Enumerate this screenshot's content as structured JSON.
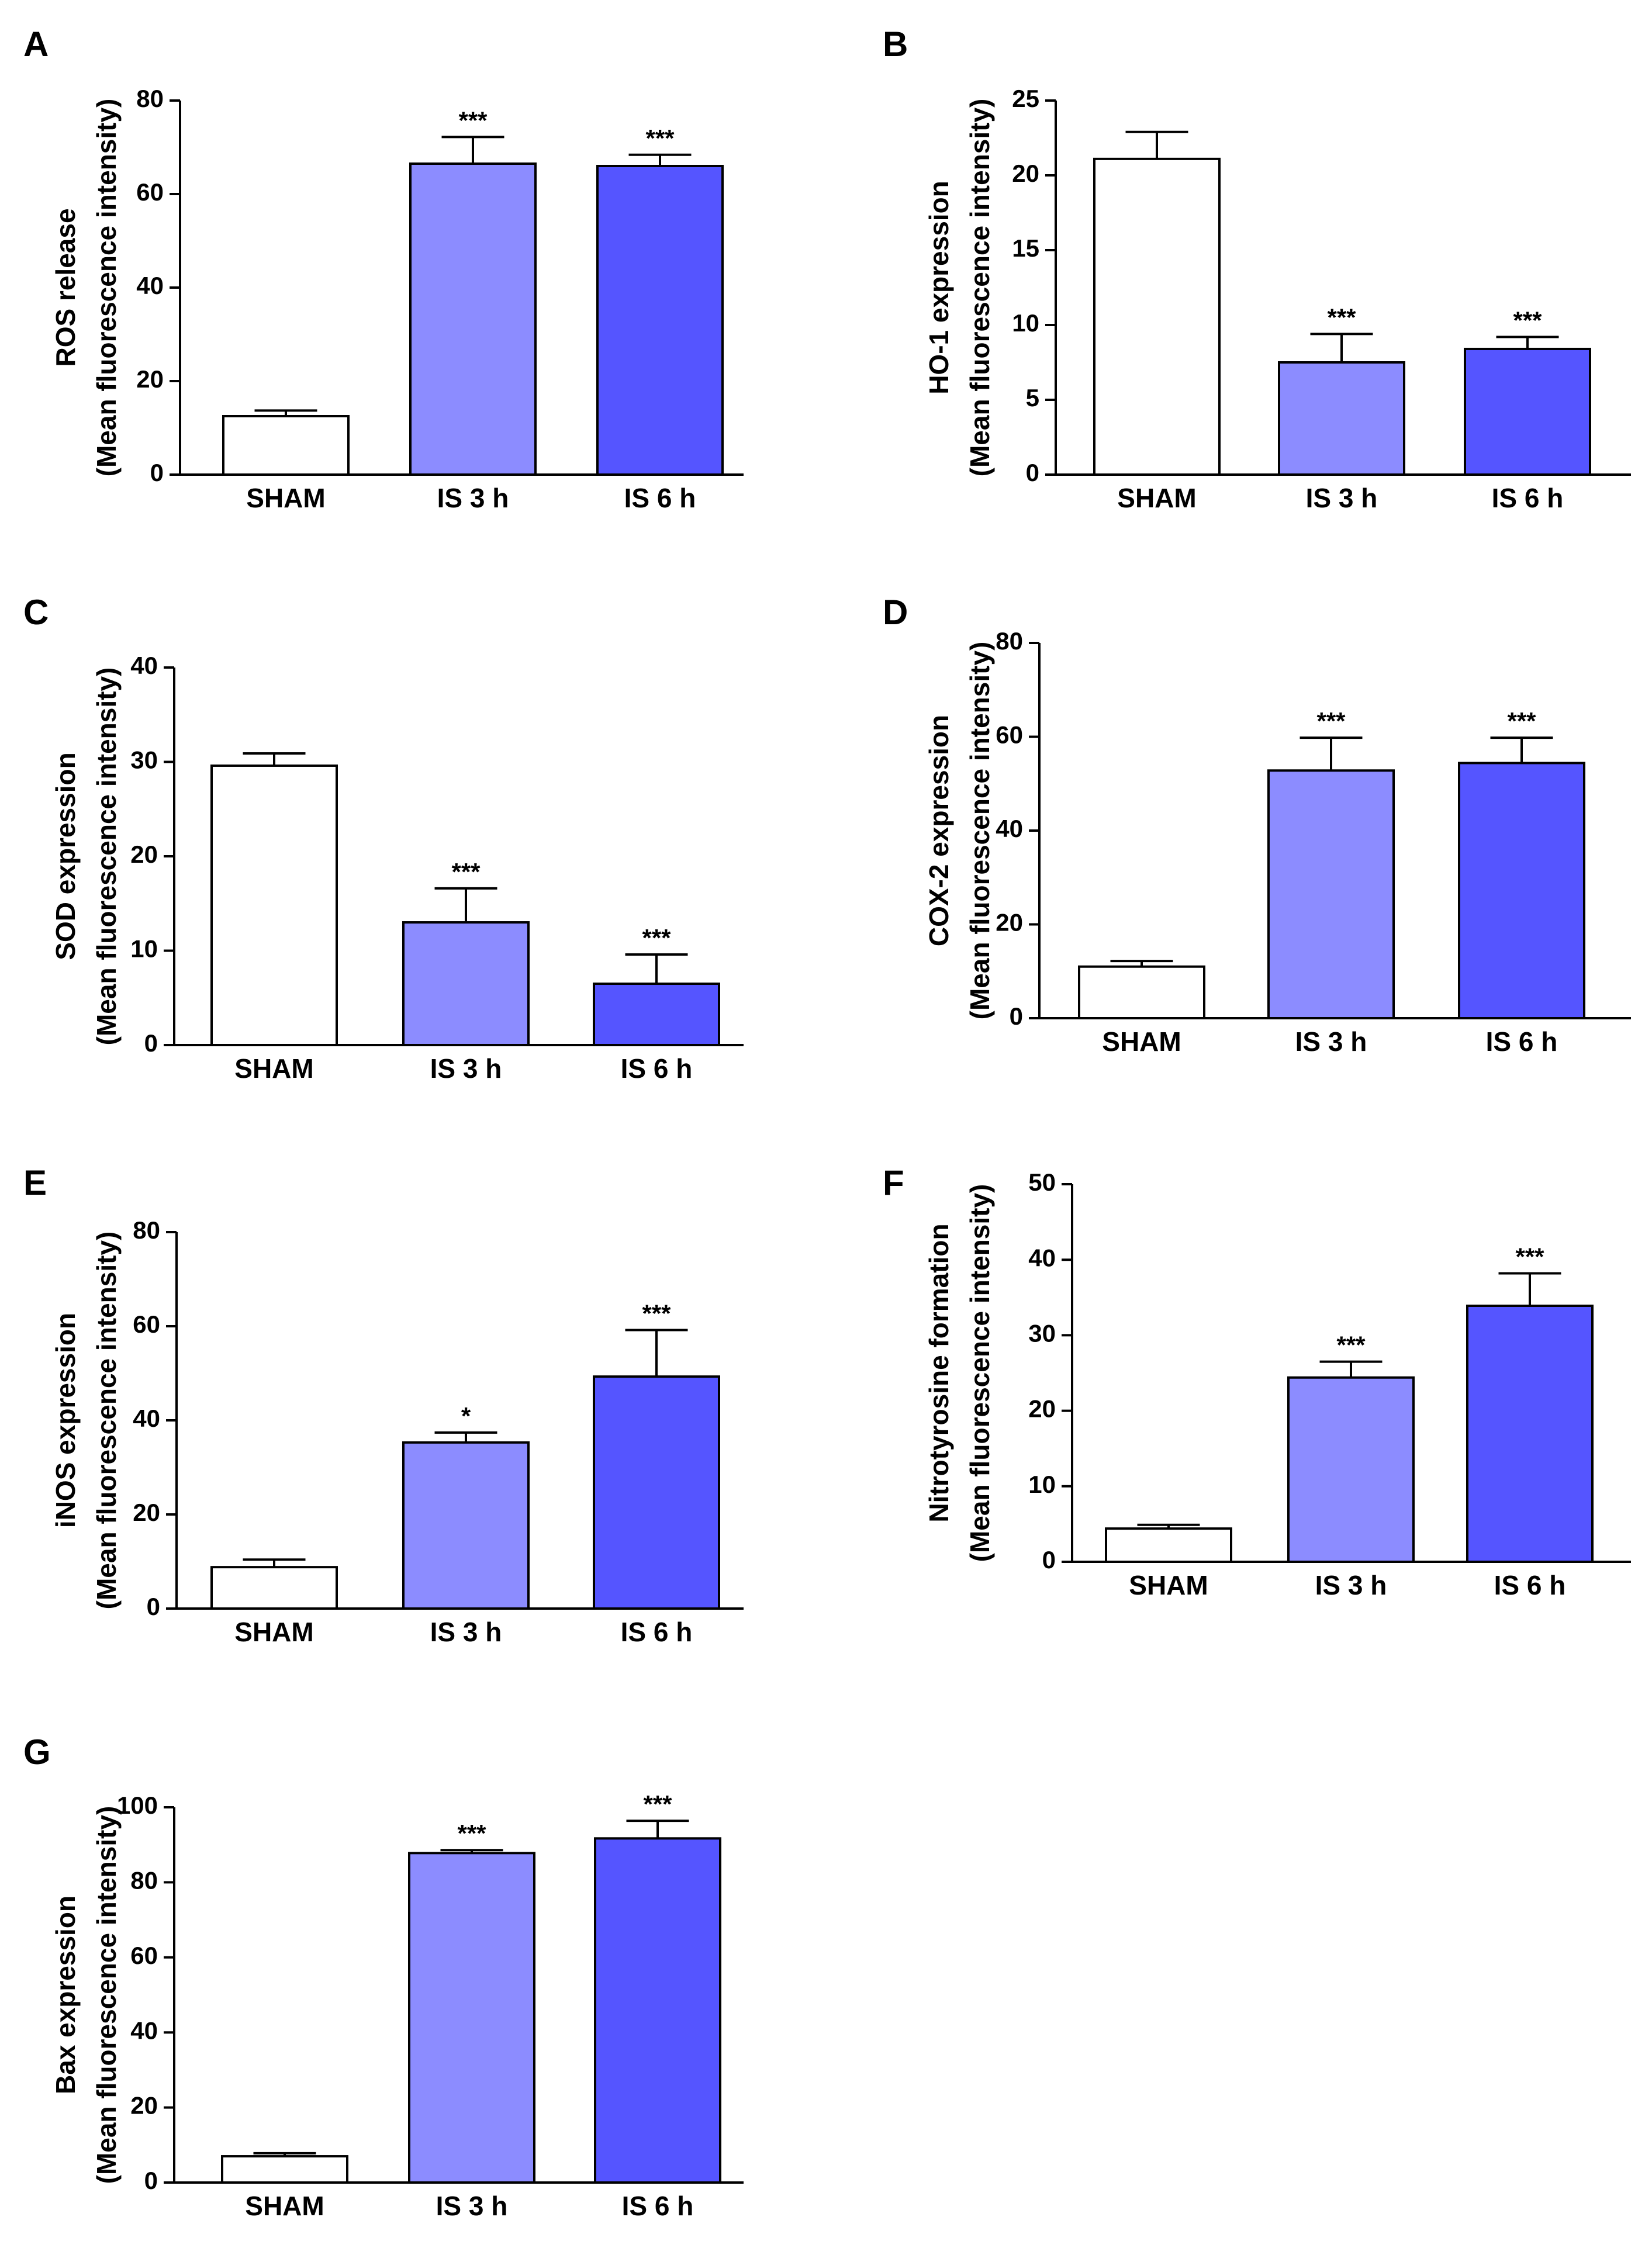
{
  "colors": {
    "SHAM": "#ffffff",
    "IS 3 h": "#8c8cff",
    "IS 6 h": "#5555ff",
    "stroke": "#000000"
  },
  "chart_data": [
    {
      "panel": "A",
      "type": "bar",
      "categories": [
        "SHAM",
        "IS 3 h",
        "IS 6 h"
      ],
      "values": [
        12.5,
        66.5,
        66.0
      ],
      "errors": [
        1.2,
        5.7,
        2.4
      ],
      "significance": [
        "",
        "***",
        "***"
      ],
      "ylabel_lines": [
        "ROS release",
        "(Mean fluorescence intensity)"
      ],
      "ylim": [
        0,
        80
      ],
      "yticks": [
        0,
        20,
        40,
        60,
        80
      ]
    },
    {
      "panel": "B",
      "type": "bar",
      "categories": [
        "SHAM",
        "IS 3 h",
        "IS 6 h"
      ],
      "values": [
        21.1,
        7.5,
        8.4
      ],
      "errors": [
        1.8,
        1.9,
        0.8
      ],
      "significance": [
        "",
        "***",
        "***"
      ],
      "ylabel_lines": [
        "HO-1 expression",
        "(Mean fluorescence intensity)"
      ],
      "ylim": [
        0,
        25
      ],
      "yticks": [
        0,
        5,
        10,
        15,
        20,
        25
      ]
    },
    {
      "panel": "C",
      "type": "bar",
      "categories": [
        "SHAM",
        "IS 3 h",
        "IS 6 h"
      ],
      "values": [
        29.6,
        13.0,
        6.5
      ],
      "errors": [
        1.3,
        3.6,
        3.1
      ],
      "significance": [
        "",
        "***",
        "***"
      ],
      "ylabel_lines": [
        "SOD expression",
        "(Mean fluorescence intensity)"
      ],
      "ylim": [
        0,
        40
      ],
      "yticks": [
        0,
        10,
        20,
        30,
        40
      ]
    },
    {
      "panel": "D",
      "type": "bar",
      "categories": [
        "SHAM",
        "IS 3 h",
        "IS 6 h"
      ],
      "values": [
        11.0,
        52.8,
        54.4
      ],
      "errors": [
        1.2,
        7.0,
        5.4
      ],
      "significance": [
        "",
        "***",
        "***"
      ],
      "ylabel_lines": [
        "COX-2 expression",
        "(Mean fluorescence intensity)"
      ],
      "ylim": [
        0,
        80
      ],
      "yticks": [
        0,
        20,
        40,
        60,
        80
      ]
    },
    {
      "panel": "E",
      "type": "bar",
      "categories": [
        "SHAM",
        "IS 3 h",
        "IS 6 h"
      ],
      "values": [
        8.8,
        35.3,
        49.3
      ],
      "errors": [
        1.6,
        2.1,
        9.9
      ],
      "significance": [
        "",
        "*",
        "***"
      ],
      "ylabel_lines": [
        "iNOS expression",
        "(Mean fluorescence intensity)"
      ],
      "ylim": [
        0,
        80
      ],
      "yticks": [
        0,
        20,
        40,
        60,
        80
      ]
    },
    {
      "panel": "F",
      "type": "bar",
      "categories": [
        "SHAM",
        "IS 3 h",
        "IS 6 h"
      ],
      "values": [
        4.4,
        24.4,
        33.9
      ],
      "errors": [
        0.5,
        2.1,
        4.3
      ],
      "significance": [
        "",
        "***",
        "***"
      ],
      "ylabel_lines": [
        "Nitrotyrosine formation",
        "(Mean fluorescence intensity)"
      ],
      "ylim": [
        0,
        50
      ],
      "yticks": [
        0,
        10,
        20,
        30,
        40,
        50
      ]
    },
    {
      "panel": "G",
      "type": "bar",
      "categories": [
        "SHAM",
        "IS 3 h",
        "IS 6 h"
      ],
      "values": [
        7.0,
        87.8,
        91.7
      ],
      "errors": [
        0.8,
        0.8,
        4.7
      ],
      "significance": [
        "",
        "***",
        "***"
      ],
      "ylabel_lines": [
        "Bax expression",
        "(Mean fluorescence intensity)"
      ],
      "ylim": [
        0,
        100
      ],
      "yticks": [
        0,
        20,
        40,
        60,
        80,
        100
      ]
    }
  ]
}
